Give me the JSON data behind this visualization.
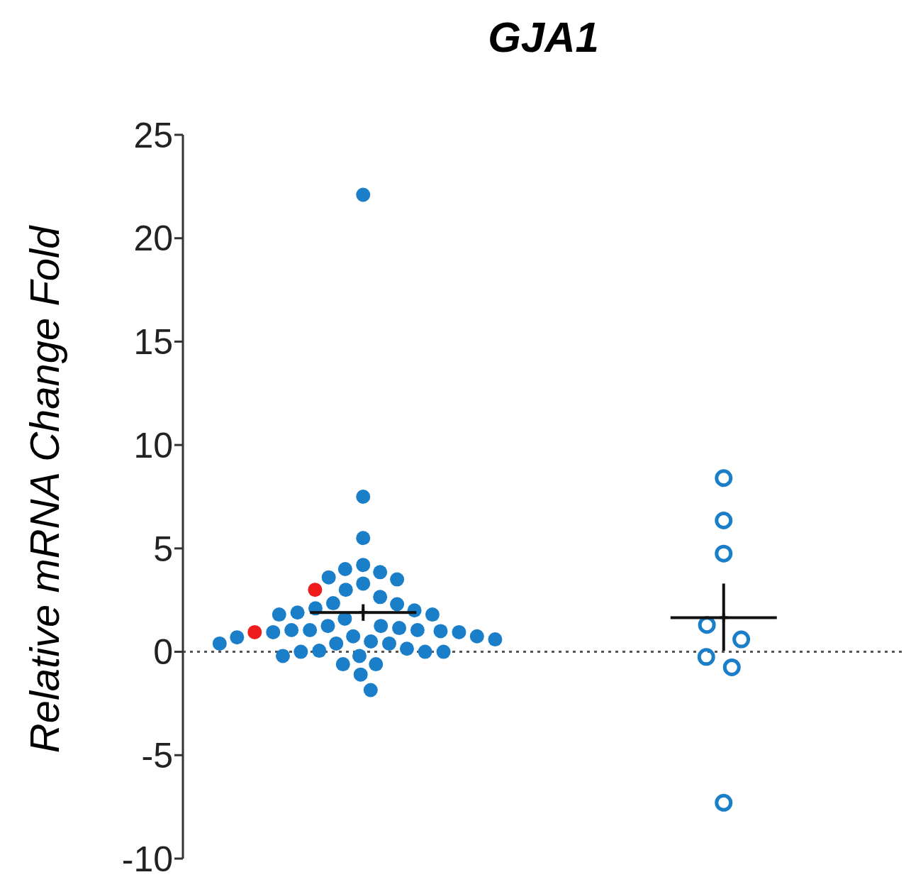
{
  "chart_data": {
    "type": "scatter",
    "title": "GJA1",
    "ylabel": "Relative mRNA Change Fold",
    "categories": [
      null,
      null
    ],
    "ylim": [
      -10,
      25
    ],
    "yticks": [
      -10,
      -5,
      0,
      5,
      10,
      15,
      20,
      25
    ],
    "tick_labels": "y",
    "grid": false,
    "legend": false,
    "marker": "circle",
    "ref_lines": [
      {
        "axis": "y",
        "value": 0,
        "color": "#555555",
        "line_style": "dotted"
      }
    ],
    "series": [
      {
        "color": "#1a7fc8",
        "values": [
          22.1,
          null
        ]
      },
      {
        "color": "#1a7fc8",
        "values": [
          7.5,
          null
        ]
      },
      {
        "color": "#1a7fc8",
        "values": [
          5.5,
          null
        ]
      },
      {
        "color": "#1a7fc8",
        "values": [
          4.2,
          null
        ]
      },
      {
        "color": "#1a7fc8",
        "values": [
          4.0,
          null
        ]
      },
      {
        "color": "#1a7fc8",
        "values": [
          3.85,
          null
        ]
      },
      {
        "color": "#1a7fc8",
        "values": [
          3.6,
          null
        ]
      },
      {
        "color": "#1a7fc8",
        "values": [
          3.5,
          null
        ]
      },
      {
        "color": "#1a7fc8",
        "values": [
          3.3,
          null
        ]
      },
      {
        "color": "#1a7fc8",
        "values": [
          3.0,
          null
        ]
      },
      {
        "color": "#ee1c1c",
        "values": [
          3.0,
          null
        ]
      },
      {
        "color": "#1a7fc8",
        "values": [
          2.65,
          null
        ]
      },
      {
        "color": "#1a7fc8",
        "values": [
          2.35,
          null
        ]
      },
      {
        "color": "#1a7fc8",
        "values": [
          2.3,
          null
        ]
      },
      {
        "color": "#1a7fc8",
        "values": [
          2.1,
          null
        ]
      },
      {
        "color": "#1a7fc8",
        "values": [
          2.0,
          null
        ]
      },
      {
        "color": "#1a7fc8",
        "values": [
          1.9,
          null
        ]
      },
      {
        "color": "#1a7fc8",
        "values": [
          1.8,
          null
        ]
      },
      {
        "color": "#1a7fc8",
        "values": [
          1.8,
          null
        ]
      },
      {
        "color": "#1a7fc8",
        "values": [
          1.6,
          null
        ]
      },
      {
        "color": "#1a7fc8",
        "values": [
          1.25,
          null
        ]
      },
      {
        "color": "#1a7fc8",
        "values": [
          1.25,
          null
        ]
      },
      {
        "color": "#1a7fc8",
        "values": [
          1.15,
          null
        ]
      },
      {
        "color": "#1a7fc8",
        "values": [
          1.05,
          null
        ]
      },
      {
        "color": "#1a7fc8",
        "values": [
          1.05,
          null
        ]
      },
      {
        "color": "#1a7fc8",
        "values": [
          1.05,
          null
        ]
      },
      {
        "color": "#1a7fc8",
        "values": [
          1.0,
          null
        ]
      },
      {
        "color": "#1a7fc8",
        "values": [
          0.95,
          null
        ]
      },
      {
        "color": "#1a7fc8",
        "values": [
          0.95,
          null
        ]
      },
      {
        "color": "#ee1c1c",
        "values": [
          0.95,
          null
        ]
      },
      {
        "color": "#1a7fc8",
        "values": [
          0.75,
          null
        ]
      },
      {
        "color": "#1a7fc8",
        "values": [
          0.75,
          null
        ]
      },
      {
        "color": "#1a7fc8",
        "values": [
          0.7,
          null
        ]
      },
      {
        "color": "#1a7fc8",
        "values": [
          0.6,
          null
        ]
      },
      {
        "color": "#1a7fc8",
        "values": [
          0.5,
          null
        ]
      },
      {
        "color": "#1a7fc8",
        "values": [
          0.4,
          null
        ]
      },
      {
        "color": "#1a7fc8",
        "values": [
          0.4,
          null
        ]
      },
      {
        "color": "#1a7fc8",
        "values": [
          0.4,
          null
        ]
      },
      {
        "color": "#1a7fc8",
        "values": [
          0.15,
          null
        ]
      },
      {
        "color": "#1a7fc8",
        "values": [
          0.05,
          null
        ]
      },
      {
        "color": "#1a7fc8",
        "values": [
          0.0,
          null
        ]
      },
      {
        "color": "#1a7fc8",
        "values": [
          0.0,
          null
        ]
      },
      {
        "color": "#1a7fc8",
        "values": [
          0.0,
          null
        ]
      },
      {
        "color": "#1a7fc8",
        "values": [
          -0.2,
          null
        ]
      },
      {
        "color": "#1a7fc8",
        "values": [
          -0.2,
          null
        ]
      },
      {
        "color": "#1a7fc8",
        "values": [
          -0.6,
          null
        ]
      },
      {
        "color": "#1a7fc8",
        "values": [
          -0.6,
          null
        ]
      },
      {
        "color": "#1a7fc8",
        "values": [
          -1.1,
          null
        ]
      },
      {
        "color": "#1a7fc8",
        "values": [
          -1.85,
          null
        ]
      },
      {
        "color": "#1a7fc8",
        "values": [
          null,
          8.4
        ]
      },
      {
        "color": "#1a7fc8",
        "values": [
          null,
          6.35
        ]
      },
      {
        "color": "#1a7fc8",
        "values": [
          null,
          4.75
        ]
      },
      {
        "color": "#1a7fc8",
        "values": [
          null,
          1.3
        ]
      },
      {
        "color": "#1a7fc8",
        "values": [
          null,
          0.6
        ]
      },
      {
        "color": "#1a7fc8",
        "values": [
          null,
          -0.25
        ]
      },
      {
        "color": "#1a7fc8",
        "values": [
          null,
          -0.75
        ]
      },
      {
        "color": "#1a7fc8",
        "values": [
          null,
          -7.3
        ]
      },
      {
        "color": "#111111",
        "marker": "cross",
        "values": [
          1.9,
          1.65
        ],
        "errors": [
          0.4,
          [
            0.05,
            3.3
          ]
        ]
      }
    ]
  }
}
